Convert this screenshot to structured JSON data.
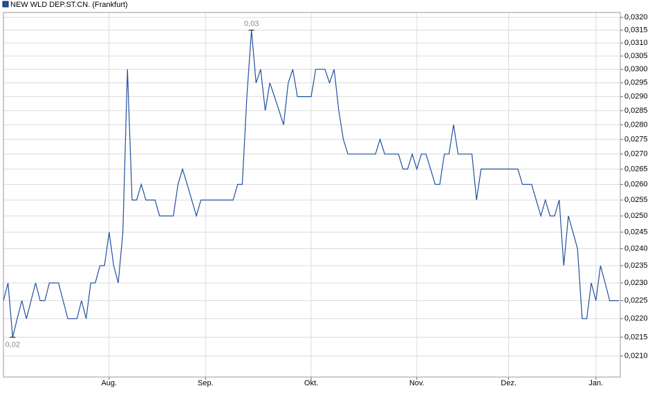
{
  "chart_data": {
    "type": "line",
    "title": "NEW WLD DEP.ST.CN. (Frankfurt)",
    "log": true,
    "grid": true,
    "series": [
      {
        "name": "NEW WLD DEP.ST.CN. (Frankfurt)",
        "color": "#1f4f9f",
        "values": [
          0.0225,
          0.023,
          0.0215,
          0.022,
          0.0225,
          0.022,
          0.0225,
          0.023,
          0.0225,
          0.0225,
          0.023,
          0.023,
          0.023,
          0.0225,
          0.022,
          0.022,
          0.022,
          0.0225,
          0.022,
          0.023,
          0.023,
          0.0235,
          0.0235,
          0.0245,
          0.0235,
          0.023,
          0.0245,
          0.03,
          0.0255,
          0.0255,
          0.026,
          0.0255,
          0.0255,
          0.0255,
          0.025,
          0.025,
          0.025,
          0.025,
          0.026,
          0.0265,
          0.026,
          0.0255,
          0.025,
          0.0255,
          0.0255,
          0.0255,
          0.0255,
          0.0255,
          0.0255,
          0.0255,
          0.0255,
          0.026,
          0.026,
          0.029,
          0.0315,
          0.0295,
          0.03,
          0.0285,
          0.0295,
          0.029,
          0.0285,
          0.028,
          0.0295,
          0.03,
          0.029,
          0.029,
          0.029,
          0.029,
          0.03,
          0.03,
          0.03,
          0.0295,
          0.03,
          0.0285,
          0.0275,
          0.027,
          0.027,
          0.027,
          0.027,
          0.027,
          0.027,
          0.027,
          0.0275,
          0.027,
          0.027,
          0.027,
          0.027,
          0.0265,
          0.0265,
          0.027,
          0.0265,
          0.027,
          0.027,
          0.0265,
          0.026,
          0.026,
          0.027,
          0.027,
          0.028,
          0.027,
          0.027,
          0.027,
          0.027,
          0.0255,
          0.0265,
          0.0265,
          0.0265,
          0.0265,
          0.0265,
          0.0265,
          0.0265,
          0.0265,
          0.0265,
          0.026,
          0.026,
          0.026,
          0.0255,
          0.025,
          0.0255,
          0.025,
          0.025,
          0.0255,
          0.0235,
          0.025,
          0.0245,
          0.024,
          0.022,
          0.022,
          0.023,
          0.0225,
          0.0235,
          0.023,
          0.0225,
          0.0225,
          0.0225
        ]
      }
    ],
    "categories": [
      null,
      null,
      null,
      null,
      null,
      null,
      null,
      null,
      null,
      null,
      null,
      null,
      null,
      null,
      null,
      null,
      null,
      null,
      null,
      null,
      null,
      null,
      null,
      "Aug.",
      null,
      null,
      null,
      null,
      null,
      null,
      null,
      null,
      null,
      null,
      null,
      null,
      null,
      null,
      null,
      null,
      null,
      null,
      null,
      null,
      "Sep.",
      null,
      null,
      null,
      null,
      null,
      null,
      null,
      null,
      null,
      null,
      null,
      null,
      null,
      null,
      null,
      null,
      null,
      null,
      null,
      null,
      null,
      null,
      "Okt.",
      null,
      null,
      null,
      null,
      null,
      null,
      null,
      null,
      null,
      null,
      null,
      null,
      null,
      null,
      null,
      null,
      null,
      null,
      null,
      null,
      null,
      null,
      "Nov.",
      null,
      null,
      null,
      null,
      null,
      null,
      null,
      null,
      null,
      null,
      null,
      null,
      null,
      null,
      null,
      null,
      null,
      null,
      null,
      "Dez.",
      null,
      null,
      null,
      null,
      null,
      null,
      null,
      null,
      null,
      null,
      null,
      null,
      null,
      null,
      null,
      null,
      null,
      null,
      "Jan.",
      null,
      null,
      null,
      null,
      null
    ],
    "max_label": "0,03",
    "min_label": "0,02",
    "ylim": [
      0.02046,
      0.0322
    ],
    "yticks": [
      {
        "value": 0.021,
        "label": "0,0210"
      },
      {
        "value": 0.0215,
        "label": "0,0215"
      },
      {
        "value": 0.022,
        "label": "0,0220"
      },
      {
        "value": 0.0225,
        "label": "0,0225"
      },
      {
        "value": 0.023,
        "label": "0,0230"
      },
      {
        "value": 0.0235,
        "label": "0,0235"
      },
      {
        "value": 0.024,
        "label": "0,0240"
      },
      {
        "value": 0.0245,
        "label": "0,0245"
      },
      {
        "value": 0.025,
        "label": "0,0250"
      },
      {
        "value": 0.0255,
        "label": "0,0255"
      },
      {
        "value": 0.026,
        "label": "0,0260"
      },
      {
        "value": 0.0265,
        "label": "0,0265"
      },
      {
        "value": 0.027,
        "label": "0,0270"
      },
      {
        "value": 0.0275,
        "label": "0,0275"
      },
      {
        "value": 0.028,
        "label": "0,0280"
      },
      {
        "value": 0.0285,
        "label": "0,0285"
      },
      {
        "value": 0.029,
        "label": "0,0290"
      },
      {
        "value": 0.0295,
        "label": "0,0295"
      },
      {
        "value": 0.03,
        "label": "0,0300"
      },
      {
        "value": 0.0305,
        "label": "0,0305"
      },
      {
        "value": 0.031,
        "label": "0,0310"
      },
      {
        "value": 0.0315,
        "label": "0,0315"
      },
      {
        "value": 0.032,
        "label": "0,0320"
      }
    ]
  }
}
